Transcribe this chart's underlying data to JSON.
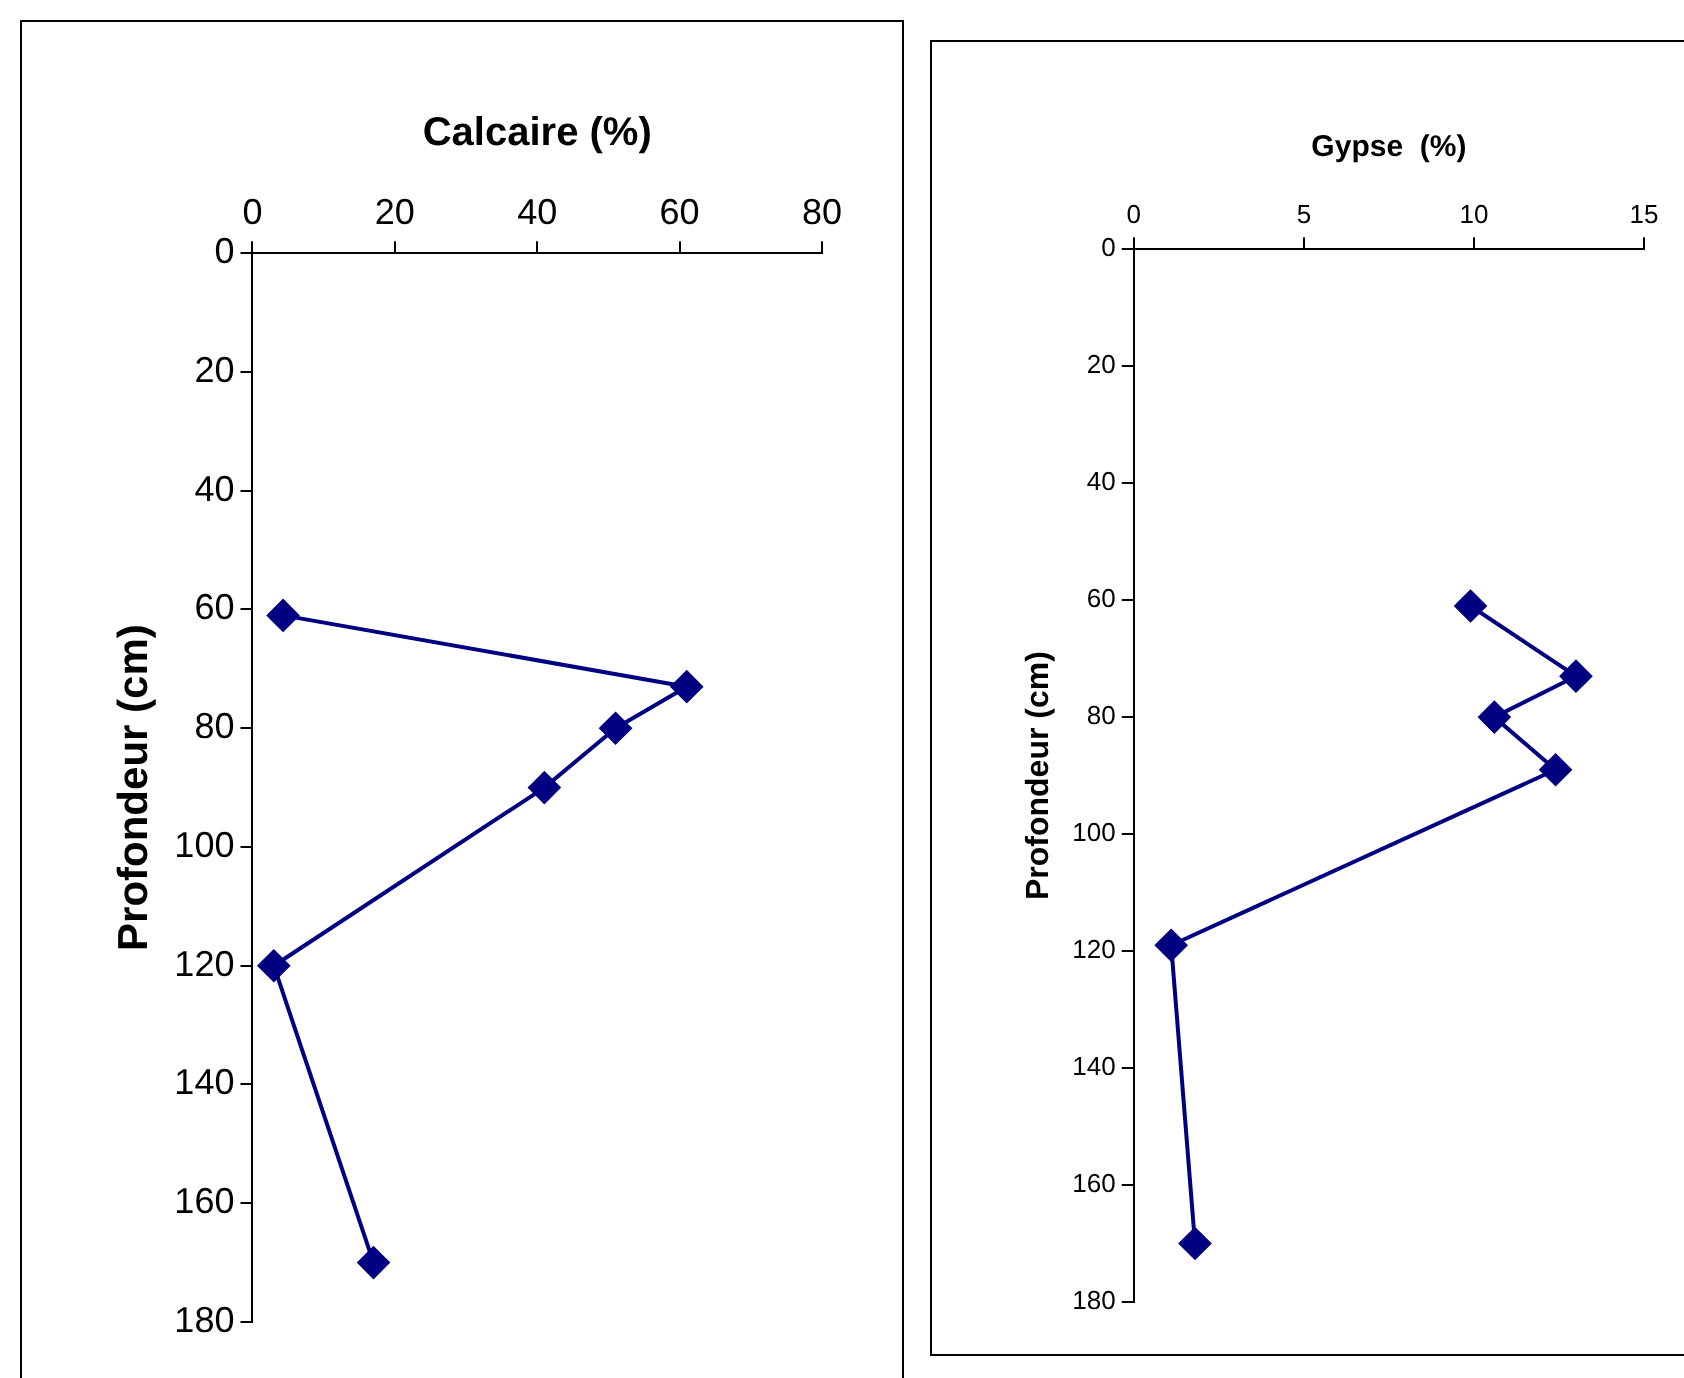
{
  "chart_data": [
    {
      "type": "line",
      "xlabel": "Calcaire (%)",
      "ylabel": "Profondeur (cm)",
      "xlim": [
        0,
        80
      ],
      "xticks": [
        0,
        20,
        40,
        60,
        80
      ],
      "ylim": [
        180,
        0
      ],
      "yticks": [
        0,
        20,
        40,
        60,
        80,
        100,
        120,
        140,
        160,
        180
      ],
      "grid": false,
      "legend": false,
      "marker": "diamond",
      "line_style": "solid",
      "series": [
        {
          "color": "#000080",
          "x": [
            4.3,
            61,
            51,
            41,
            3,
            17
          ],
          "values": [
            61,
            73,
            80,
            90,
            120,
            170
          ]
        }
      ]
    },
    {
      "type": "line",
      "xlabel": "Gypse  (%)",
      "ylabel": "Profondeur (cm)",
      "xlim": [
        0,
        15
      ],
      "xticks": [
        0,
        5,
        10,
        15
      ],
      "ylim": [
        180,
        0
      ],
      "yticks": [
        0,
        20,
        40,
        60,
        80,
        100,
        120,
        140,
        160,
        180
      ],
      "grid": false,
      "legend": false,
      "marker": "diamond",
      "line_style": "solid",
      "series": [
        {
          "color": "#000080",
          "x": [
            9.9,
            13,
            10.6,
            12.4,
            1.1,
            1.8
          ],
          "values": [
            61,
            73,
            80,
            89,
            119,
            170
          ]
        }
      ]
    }
  ]
}
